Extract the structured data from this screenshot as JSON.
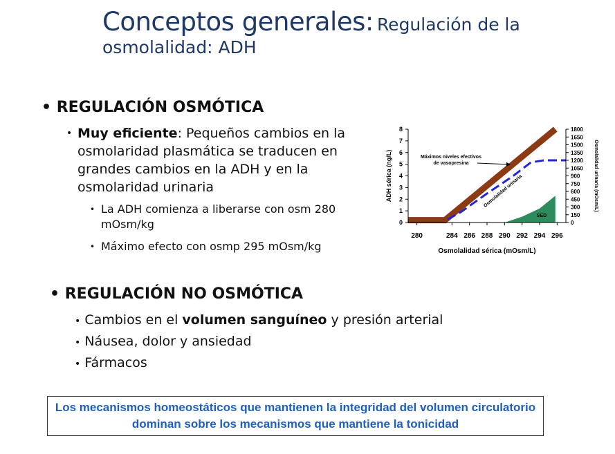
{
  "title": {
    "main": "Conceptos generales:",
    "sub": "Regulación de la osmolalidad: ADH"
  },
  "sections": [
    {
      "heading": "REGULACIÓN OSMÓTICA",
      "items": [
        {
          "bold": "Muy eficiente",
          "text": ": Pequeños cambios en la osmolaridad plasmática se traducen en grandes cambios en la ADH y en la osmolaridad urinaria",
          "subitems": [
            "La ADH comienza a liberarse con osm 280 mOsm/kg",
            "Máximo efecto con osmp 295 mOsm/kg"
          ]
        }
      ]
    },
    {
      "heading": "REGULACIÓN NO OSMÓTICA",
      "items": [
        {
          "before": "Cambios en el ",
          "bold": "volumen sanguíneo",
          "after": " y presión arterial"
        },
        {
          "text": "Náusea, dolor y ansiedad"
        },
        {
          "text": "Fármacos"
        }
      ]
    }
  ],
  "chart_data": {
    "type": "line",
    "xlabel": "Osmolalidad sérica (mOsm/L)",
    "ylabel": "ADH sérica (ng/L)",
    "y2label": "Osmolalidad urinaria (mOsm/L)",
    "xlim": [
      279,
      297
    ],
    "xticks": [
      280,
      284,
      286,
      288,
      290,
      292,
      294,
      296
    ],
    "ylim": [
      0,
      8
    ],
    "yticks": [
      0,
      1,
      2,
      3,
      4,
      5,
      6,
      7,
      8
    ],
    "y2lim": [
      0,
      1800
    ],
    "y2ticks": [
      0,
      150,
      300,
      450,
      600,
      750,
      900,
      1050,
      1200,
      1350,
      1500,
      1650,
      1800
    ],
    "series": [
      {
        "color": "#8b3a14",
        "style": "solid",
        "x": [
          279,
          283.2,
          295.8
        ],
        "values": [
          0.2,
          0.2,
          8
        ]
      },
      {
        "color": "#2424d8",
        "style": "dashed",
        "axis": "y2",
        "x": [
          283.5,
          285,
          288,
          291,
          293,
          294.5,
          297
        ],
        "values": [
          60,
          200,
          560,
          900,
          1160,
          1200,
          1200
        ]
      },
      {
        "color": "#2e8b5e",
        "style": "area",
        "x": [
          290,
          292,
          294,
          295.8,
          295.8
        ],
        "values": [
          0,
          0.5,
          1.2,
          2.3,
          0
        ]
      }
    ],
    "annotations": {
      "max_levels": [
        "Máximos niveles efectivos",
        "de vasopresina"
      ],
      "urine": "Osmolalidad urinaria",
      "sed": "SED"
    }
  },
  "footer_box": "Los mecanismos homeostáticos que mantienen la integridad del volumen circulatorio dominan sobre los mecanismos que mantiene la tonicidad"
}
